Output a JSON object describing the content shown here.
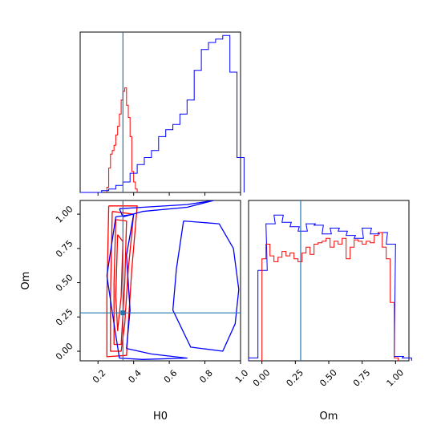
{
  "chart_data": [
    {
      "panel": "H0 marginal",
      "type": "step-histogram",
      "xlim": [
        0.1,
        1.0
      ],
      "truth_x": 0.34,
      "series": [
        {
          "color": "#ff0000",
          "x": [
            0.25,
            0.26,
            0.27,
            0.28,
            0.29,
            0.3,
            0.31,
            0.32,
            0.33,
            0.34,
            0.35,
            0.36,
            0.37,
            0.38,
            0.39,
            0.4,
            0.41
          ],
          "values": [
            0.03,
            0.14,
            0.22,
            0.24,
            0.27,
            0.33,
            0.38,
            0.45,
            0.53,
            0.58,
            0.6,
            0.5,
            0.43,
            0.32,
            0.12,
            0.06,
            0.02
          ]
        },
        {
          "color": "#0000ff",
          "x": [
            0.1,
            0.14,
            0.18,
            0.22,
            0.26,
            0.3,
            0.34,
            0.38,
            0.42,
            0.46,
            0.5,
            0.54,
            0.58,
            0.62,
            0.66,
            0.7,
            0.74,
            0.78,
            0.82,
            0.86,
            0.9,
            0.94,
            0.98
          ],
          "values": [
            0.0,
            0.0,
            0.0,
            0.01,
            0.02,
            0.04,
            0.06,
            0.11,
            0.16,
            0.2,
            0.24,
            0.32,
            0.36,
            0.39,
            0.45,
            0.53,
            0.7,
            0.82,
            0.86,
            0.88,
            0.9,
            0.69,
            0.2
          ]
        }
      ]
    },
    {
      "panel": "H0 vs Om joint",
      "type": "contour",
      "xlabel": "H0",
      "ylabel": "Om",
      "xlim": [
        0.1,
        1.0
      ],
      "ylim": [
        -0.07,
        1.1
      ],
      "xticks": [
        "0.2",
        "0.4",
        "0.6",
        "0.8",
        "1.0"
      ],
      "yticks": [
        "0.00",
        "0.25",
        "0.50",
        "0.75",
        "1.00"
      ],
      "truth": [
        0.34,
        0.28
      ],
      "series": [
        {
          "color": "#ff0000",
          "contours": [
            [
              [
                0.26,
                1.06
              ],
              [
                0.42,
                1.06
              ],
              [
                0.39,
                0.6
              ],
              [
                0.37,
                0.2
              ],
              [
                0.36,
                -0.03
              ],
              [
                0.25,
                -0.04
              ],
              [
                0.25,
                0.4
              ],
              [
                0.26,
                1.06
              ]
            ],
            [
              [
                0.28,
                1.02
              ],
              [
                0.4,
                1.0
              ],
              [
                0.37,
                0.6
              ],
              [
                0.35,
                0.2
              ],
              [
                0.33,
                0.0
              ],
              [
                0.27,
                0.0
              ],
              [
                0.27,
                0.4
              ],
              [
                0.28,
                1.02
              ]
            ],
            [
              [
                0.3,
                0.96
              ],
              [
                0.36,
                0.95
              ],
              [
                0.35,
                0.5
              ],
              [
                0.33,
                0.05
              ],
              [
                0.29,
                0.05
              ],
              [
                0.29,
                0.5
              ],
              [
                0.3,
                0.96
              ]
            ],
            [
              [
                0.31,
                0.85
              ],
              [
                0.34,
                0.8
              ],
              [
                0.33,
                0.4
              ],
              [
                0.31,
                0.15
              ],
              [
                0.3,
                0.4
              ],
              [
                0.31,
                0.85
              ]
            ]
          ]
        },
        {
          "color": "#0000ff",
          "contours": [
            [
              [
                0.32,
                1.04
              ],
              [
                0.45,
                1.05
              ],
              [
                0.7,
                1.07
              ],
              [
                0.85,
                1.1
              ],
              [
                0.7,
                1.05
              ],
              [
                0.45,
                1.02
              ],
              [
                0.34,
                0.98
              ],
              [
                0.32,
                1.04
              ]
            ],
            [
              [
                0.68,
                0.95
              ],
              [
                0.88,
                0.93
              ],
              [
                0.96,
                0.75
              ],
              [
                0.99,
                0.45
              ],
              [
                0.97,
                0.2
              ],
              [
                0.9,
                0.0
              ],
              [
                0.72,
                0.03
              ],
              [
                0.62,
                0.3
              ],
              [
                0.64,
                0.6
              ],
              [
                0.68,
                0.95
              ]
            ],
            [
              [
                0.25,
                0.55
              ],
              [
                0.3,
                0.98
              ],
              [
                0.4,
                1.0
              ],
              [
                0.36,
                0.7
              ],
              [
                0.38,
                0.3
              ],
              [
                0.36,
                0.02
              ],
              [
                0.5,
                -0.02
              ],
              [
                0.7,
                -0.05
              ],
              [
                0.45,
                -0.06
              ],
              [
                0.32,
                -0.05
              ],
              [
                0.29,
                0.2
              ],
              [
                0.25,
                0.55
              ]
            ]
          ]
        }
      ]
    },
    {
      "panel": "Om marginal",
      "type": "step-histogram",
      "xlabel": "Om",
      "xlim": [
        -0.1,
        1.1
      ],
      "xticks": [
        "0.00",
        "0.25",
        "0.50",
        "0.75",
        "1.00"
      ],
      "truth_x": 0.29,
      "series": [
        {
          "color": "#0000ff",
          "x": [
            -0.1,
            -0.03,
            0.03,
            0.09,
            0.15,
            0.21,
            0.27,
            0.33,
            0.39,
            0.45,
            0.51,
            0.57,
            0.63,
            0.69,
            0.75,
            0.81,
            0.87,
            0.93,
            0.99,
            1.05
          ],
          "values": [
            0.02,
            0.62,
            0.94,
            1.0,
            0.95,
            0.92,
            0.89,
            0.94,
            0.93,
            0.87,
            0.91,
            0.89,
            0.86,
            0.84,
            0.91,
            0.87,
            0.88,
            0.8,
            0.03,
            0.02
          ]
        },
        {
          "color": "#ff0000",
          "x": [
            0.0,
            0.03,
            0.06,
            0.09,
            0.12,
            0.15,
            0.18,
            0.21,
            0.24,
            0.27,
            0.3,
            0.33,
            0.36,
            0.39,
            0.42,
            0.45,
            0.48,
            0.51,
            0.54,
            0.57,
            0.6,
            0.63,
            0.66,
            0.69,
            0.72,
            0.75,
            0.78,
            0.81,
            0.84,
            0.87,
            0.9,
            0.93,
            0.96,
            0.99
          ],
          "values": [
            0.7,
            0.8,
            0.72,
            0.68,
            0.71,
            0.75,
            0.72,
            0.74,
            0.7,
            0.68,
            0.74,
            0.78,
            0.73,
            0.8,
            0.81,
            0.82,
            0.84,
            0.78,
            0.82,
            0.8,
            0.84,
            0.7,
            0.78,
            0.83,
            0.82,
            0.8,
            0.82,
            0.81,
            0.86,
            0.88,
            0.78,
            0.7,
            0.4,
            0.02
          ]
        }
      ]
    }
  ]
}
